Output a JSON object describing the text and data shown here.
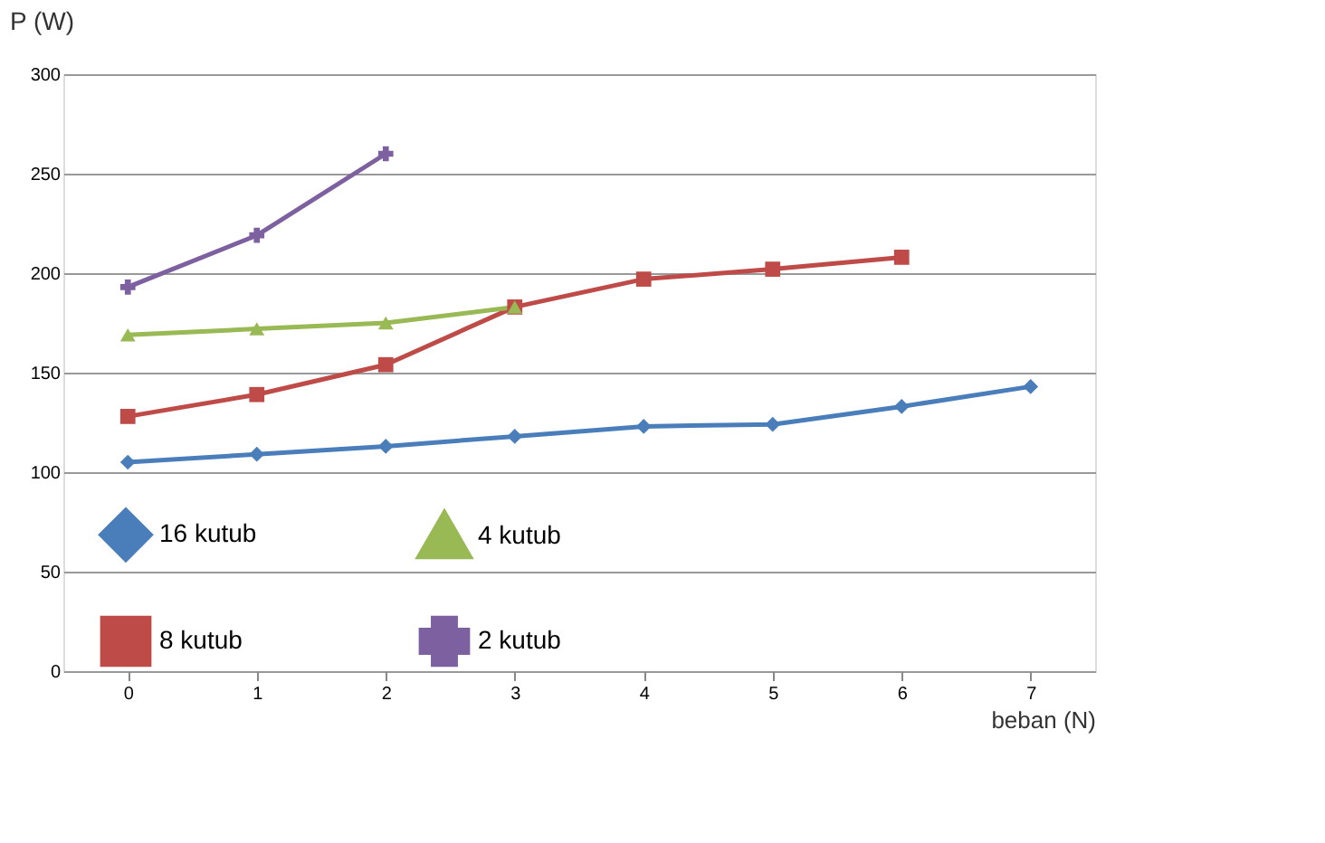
{
  "chart_data": {
    "type": "line",
    "ylabel": "P (W)",
    "xlabel": "beban (N)",
    "categories": [
      "0",
      "1",
      "2",
      "3",
      "4",
      "5",
      "6",
      "7"
    ],
    "series": [
      {
        "name": "16 kutub",
        "color": "#4a7ebb",
        "marker": "diamond",
        "values": [
          105,
          109,
          113,
          118,
          123,
          124,
          133,
          143
        ]
      },
      {
        "name": "8 kutub",
        "color": "#be4b48",
        "marker": "square",
        "values": [
          128,
          139,
          154,
          183,
          197,
          202,
          208,
          null
        ]
      },
      {
        "name": "4 kutub",
        "color": "#98b954",
        "marker": "triangle",
        "values": [
          169,
          172,
          175,
          183,
          null,
          null,
          null,
          null
        ]
      },
      {
        "name": "2 kutub",
        "color": "#7d60a0",
        "marker": "cross",
        "values": [
          193,
          219,
          260,
          null,
          null,
          null,
          null,
          null
        ]
      }
    ],
    "ylim": [
      0,
      300
    ],
    "yticks": [
      0,
      50,
      100,
      150,
      200,
      250,
      300
    ],
    "grid": "y",
    "legend": "bottom left"
  }
}
